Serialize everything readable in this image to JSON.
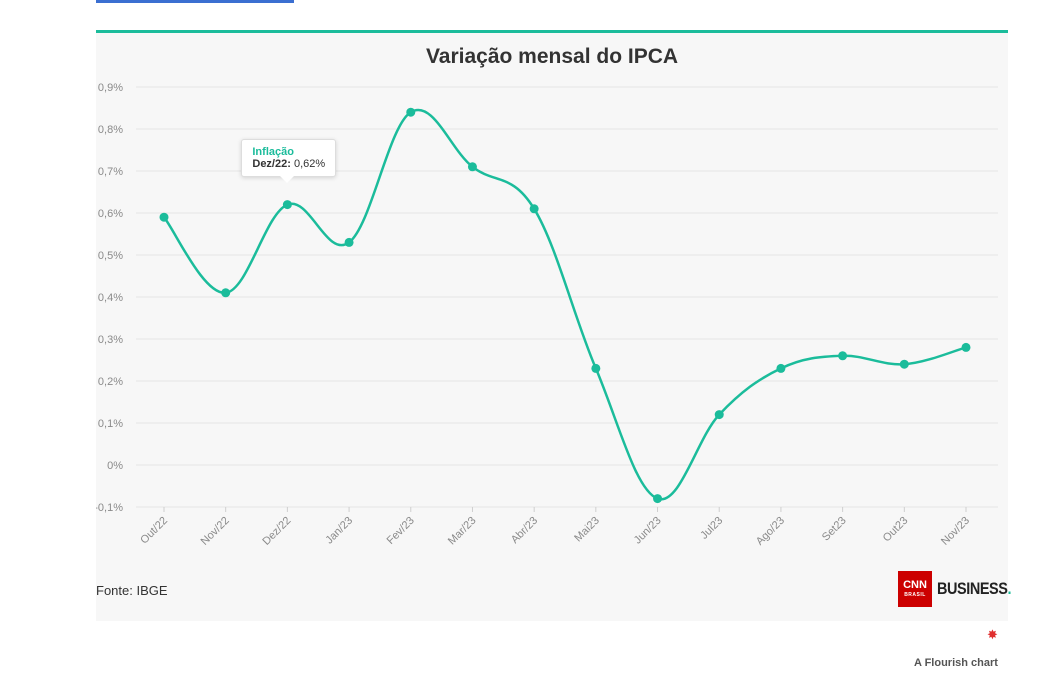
{
  "chart_data": {
    "type": "line",
    "title": "Variação mensal do IPCA",
    "categories": [
      "Out/22",
      "Nov/22",
      "Dez/22",
      "Jan/23",
      "Fev/23",
      "Mar/23",
      "Abr/23",
      "Mai23",
      "Jun/23",
      "Jul23",
      "Ago/23",
      "Set23",
      "Out23",
      "Nov/23"
    ],
    "series": [
      {
        "name": "Inflação",
        "values": [
          0.59,
          0.41,
          0.62,
          0.53,
          0.84,
          0.71,
          0.61,
          0.23,
          -0.08,
          0.12,
          0.23,
          0.26,
          0.24,
          0.28
        ]
      }
    ],
    "yticks": [
      "0,9%",
      "0,8%",
      "0,7%",
      "0,6%",
      "0,5%",
      "0,4%",
      "0,3%",
      "0,2%",
      "0,1%",
      "0%",
      "-0,1%"
    ],
    "ylim": [
      -0.1,
      0.9
    ],
    "grid": true,
    "color": "#1bbc9b",
    "tooltip": {
      "series": "Inflação",
      "label": "Dez/22:",
      "value": "0,62%",
      "index": 2
    }
  },
  "source": "Fonte: IBGE",
  "logo": {
    "box_text": "CNN",
    "box_sub": "BRASIL",
    "text": "BUSINESS",
    "dot": "."
  },
  "flourish": {
    "icon": "flourish-icon",
    "text": "A Flourish chart"
  }
}
